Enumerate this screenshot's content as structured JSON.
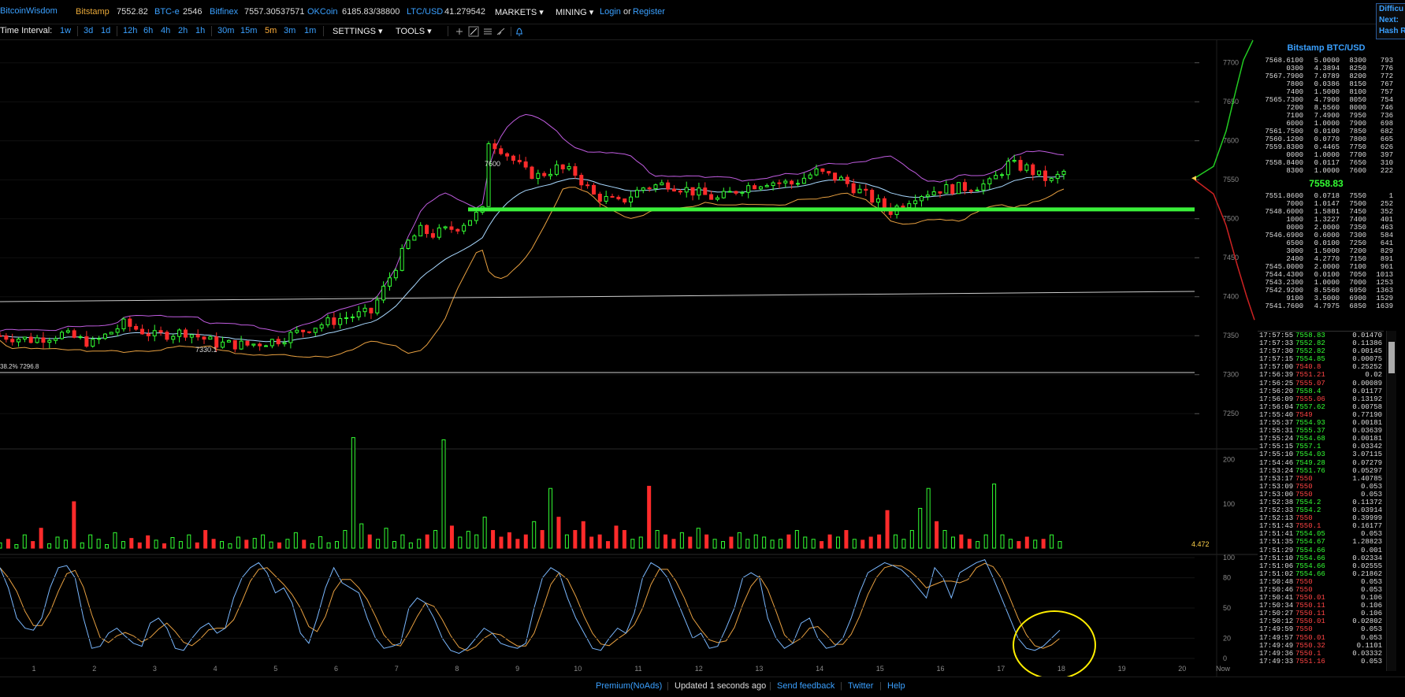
{
  "header": {
    "brand": "BitcoinWisdom",
    "tickers": [
      {
        "name": "Bitstamp",
        "value": "7552.82"
      },
      {
        "name": "BTC-e",
        "value": "2546"
      },
      {
        "name": "Bitfinex",
        "value": "7557.30537571"
      },
      {
        "name": "OKCoin",
        "value": "6185.83/38800"
      },
      {
        "name": "LTC/USD",
        "value": "41.279542"
      }
    ],
    "menus": {
      "markets": "MARKETS ▾",
      "mining": "MINING ▾"
    },
    "login": "Login",
    "or": "or",
    "register": "Register",
    "difficulty": {
      "line1": "Difficu",
      "line2": "Next:",
      "line3": "Hash R"
    }
  },
  "toolbar": {
    "time_interval_label": "Time Interval:",
    "intervals": [
      "1w",
      "3d",
      "1d",
      "12h",
      "6h",
      "4h",
      "2h",
      "1h",
      "30m",
      "15m",
      "5m",
      "3m",
      "1m"
    ],
    "active_interval": "5m",
    "settings": "SETTINGS ▾",
    "tools": "TOOLS ▾",
    "tool_icons": [
      "plus-icon",
      "line-icon",
      "hlines-icon",
      "brush-icon",
      "bell-icon"
    ]
  },
  "colors": {
    "up": "#33ff33",
    "down": "#ff2b2b",
    "accent": "#3aa0ff",
    "fib_line": "#3af03a",
    "band": "#c05ce0",
    "ema": "#a8d8ff",
    "lower_band": "#e8a040",
    "circle": "#ffee00"
  },
  "chart_data": {
    "type": "candlestick",
    "title": "",
    "price_axis": [
      "7700",
      "7650",
      "7600",
      "7550",
      "7500",
      "7450",
      "7400",
      "7350",
      "7300",
      "7250"
    ],
    "ylim": [
      7225,
      7730
    ],
    "x_ticks": [
      "1",
      "2",
      "3",
      "4",
      "5",
      "6",
      "7",
      "8",
      "9",
      "10",
      "11",
      "12",
      "13",
      "14",
      "15",
      "16",
      "17",
      "18",
      "19",
      "20",
      "Now"
    ],
    "annotations": {
      "high": "7600",
      "low": "7330.1",
      "fib": "38.2% 7296.8"
    },
    "horizontal_level": 7512,
    "price_path": [
      [
        0,
        7350
      ],
      [
        5,
        7345
      ],
      [
        10,
        7352
      ],
      [
        15,
        7340
      ],
      [
        20,
        7365
      ],
      [
        25,
        7350
      ],
      [
        30,
        7355
      ],
      [
        35,
        7340
      ],
      [
        40,
        7338
      ],
      [
        45,
        7345
      ],
      [
        50,
        7360
      ],
      [
        55,
        7372
      ],
      [
        60,
        7380
      ],
      [
        62,
        7410
      ],
      [
        64,
        7440
      ],
      [
        66,
        7470
      ],
      [
        68,
        7485
      ],
      [
        70,
        7480
      ],
      [
        72,
        7485
      ],
      [
        74,
        7490
      ],
      [
        76,
        7500
      ],
      [
        78,
        7510
      ],
      [
        79,
        7600
      ],
      [
        81,
        7590
      ],
      [
        83,
        7575
      ],
      [
        85,
        7560
      ],
      [
        87,
        7555
      ],
      [
        90,
        7565
      ],
      [
        93,
        7558
      ],
      [
        96,
        7530
      ],
      [
        100,
        7520
      ],
      [
        104,
        7540
      ],
      [
        108,
        7545
      ],
      [
        112,
        7535
      ],
      [
        116,
        7525
      ],
      [
        120,
        7540
      ],
      [
        124,
        7548
      ],
      [
        128,
        7545
      ],
      [
        132,
        7560
      ],
      [
        136,
        7550
      ],
      [
        140,
        7530
      ],
      [
        144,
        7510
      ],
      [
        148,
        7530
      ],
      [
        152,
        7538
      ],
      [
        156,
        7540
      ],
      [
        160,
        7545
      ],
      [
        163,
        7570
      ],
      [
        166,
        7565
      ],
      [
        168,
        7555
      ],
      [
        170,
        7548
      ],
      [
        172,
        7560
      ]
    ],
    "volume_axis": [
      "200",
      "100"
    ],
    "volume_ylim": [
      0,
      260
    ],
    "volume_last": "4.472",
    "volumes": [
      12,
      20,
      8,
      30,
      15,
      45,
      10,
      25,
      18,
      105,
      12,
      30,
      20,
      8,
      35,
      15,
      22,
      12,
      28,
      18,
      10,
      24,
      15,
      30,
      12,
      40,
      20,
      15,
      10,
      25,
      18,
      22,
      30,
      14,
      12,
      20,
      35,
      18,
      10,
      26,
      12,
      15,
      40,
      250,
      55,
      30,
      20,
      45,
      15,
      30,
      12,
      20,
      30,
      40,
      245,
      50,
      25,
      38,
      30,
      70,
      40,
      25,
      35,
      20,
      30,
      60,
      40,
      135,
      70,
      30,
      40,
      60,
      25,
      30,
      15,
      50,
      40,
      20,
      25,
      140,
      40,
      30,
      20,
      35,
      25,
      45,
      30,
      20,
      15,
      25,
      35,
      20,
      30,
      25,
      18,
      20,
      30,
      40,
      25,
      20,
      15,
      30,
      25,
      40,
      20,
      18,
      25,
      30,
      85,
      30,
      20,
      40,
      90,
      135,
      60,
      40,
      25,
      30,
      20,
      15,
      30,
      145,
      30,
      20,
      15,
      25,
      18,
      20,
      30,
      15
    ],
    "oscillator_axis": [
      "100",
      "80",
      "50",
      "20",
      "0"
    ],
    "oscillator_ylim": [
      0,
      100
    ],
    "oscillator_k": [
      90,
      70,
      40,
      30,
      28,
      40,
      70,
      90,
      92,
      80,
      40,
      10,
      12,
      25,
      30,
      22,
      15,
      12,
      35,
      40,
      30,
      10,
      8,
      20,
      30,
      35,
      25,
      30,
      60,
      80,
      90,
      95,
      85,
      65,
      70,
      55,
      25,
      15,
      40,
      70,
      90,
      75,
      70,
      65,
      40,
      20,
      10,
      12,
      15,
      50,
      60,
      55,
      40,
      20,
      8,
      5,
      10,
      20,
      30,
      25,
      15,
      12,
      10,
      15,
      50,
      80,
      90,
      85,
      60,
      40,
      25,
      10,
      8,
      20,
      30,
      25,
      45,
      80,
      95,
      90,
      80,
      60,
      40,
      20,
      25,
      10,
      12,
      30,
      50,
      80,
      85,
      80,
      40,
      20,
      10,
      15,
      35,
      40,
      20,
      10,
      12,
      20,
      40,
      65,
      85,
      90,
      95,
      92,
      88,
      80,
      70,
      60,
      90,
      80,
      60,
      85,
      90,
      95,
      98,
      80,
      60,
      40,
      20,
      10,
      8,
      12,
      20,
      28
    ]
  },
  "orderbook": {
    "title": "Bitstamp BTC/USD",
    "asks": [
      [
        "7568.6100",
        "5.0000",
        "8300",
        "793"
      ],
      [
        "0300",
        "4.3894",
        "8250",
        "776"
      ],
      [
        "7567.7900",
        "7.0789",
        "8200",
        "772"
      ],
      [
        "7800",
        "0.0386",
        "8150",
        "767"
      ],
      [
        "7400",
        "1.5000",
        "8100",
        "757"
      ],
      [
        "7565.7300",
        "4.7900",
        "8050",
        "754"
      ],
      [
        "7200",
        "8.5560",
        "8000",
        "746"
      ],
      [
        "7100",
        "7.4900",
        "7950",
        "736"
      ],
      [
        "6000",
        "1.0000",
        "7900",
        "698"
      ],
      [
        "7561.7500",
        "0.0100",
        "7850",
        "682"
      ],
      [
        "7560.1200",
        "0.0770",
        "7800",
        "665"
      ],
      [
        "7559.8300",
        "0.4465",
        "7750",
        "626"
      ],
      [
        "0000",
        "1.0000",
        "7700",
        "397"
      ],
      [
        "7558.8400",
        "0.0117",
        "7650",
        "310"
      ],
      [
        "8300",
        "1.0000",
        "7600",
        "222"
      ]
    ],
    "last": "7558.83",
    "bids": [
      [
        "7551.8600",
        "0.0718",
        "7550",
        "1"
      ],
      [
        "7000",
        "1.0147",
        "7500",
        "252"
      ],
      [
        "7548.6000",
        "1.5881",
        "7450",
        "352"
      ],
      [
        "1000",
        "1.3227",
        "7400",
        "401"
      ],
      [
        "0000",
        "2.0000",
        "7350",
        "463"
      ],
      [
        "7546.6900",
        "0.6000",
        "7300",
        "584"
      ],
      [
        "6500",
        "0.0100",
        "7250",
        "641"
      ],
      [
        "3000",
        "1.5000",
        "7200",
        "829"
      ],
      [
        "2400",
        "4.2770",
        "7150",
        "891"
      ],
      [
        "7545.0000",
        "2.0000",
        "7100",
        "961"
      ],
      [
        "7544.4300",
        "0.0100",
        "7050",
        "1013"
      ],
      [
        "7543.2300",
        "1.0000",
        "7000",
        "1253"
      ],
      [
        "7542.9200",
        "8.5560",
        "6950",
        "1363"
      ],
      [
        "9100",
        "3.5000",
        "6900",
        "1529"
      ],
      [
        "7541.7600",
        "4.7975",
        "6850",
        "1639"
      ]
    ]
  },
  "trades": [
    [
      "17:57:55",
      "7558.83",
      "0.01470",
      "up"
    ],
    [
      "17:57:33",
      "7552.82",
      "0.11386",
      "up"
    ],
    [
      "17:57:30",
      "7552.82",
      "0.00145",
      "up"
    ],
    [
      "17:57:15",
      "7554.85",
      "0.00075",
      "up"
    ],
    [
      "17:57:00",
      "7540.8",
      "0.25252",
      "dn"
    ],
    [
      "17:56:39",
      "7551.21",
      "0.02",
      "dn"
    ],
    [
      "17:56:25",
      "7555.07",
      "0.00089",
      "dn"
    ],
    [
      "17:56:20",
      "7558.4",
      "0.01177",
      "up"
    ],
    [
      "17:56:09",
      "7555.06",
      "0.13192",
      "dn"
    ],
    [
      "17:56:04",
      "7557.62",
      "0.00758",
      "up"
    ],
    [
      "17:55:40",
      "7549",
      "0.77190",
      "dn"
    ],
    [
      "17:55:37",
      "7554.93",
      "0.00181",
      "up"
    ],
    [
      "17:55:31",
      "7555.37",
      "0.03639",
      "up"
    ],
    [
      "17:55:24",
      "7554.68",
      "0.00181",
      "up"
    ],
    [
      "17:55:15",
      "7557.1",
      "0.03342",
      "up"
    ],
    [
      "17:55:10",
      "7554.03",
      "3.07115",
      "up"
    ],
    [
      "17:54:46",
      "7549.28",
      "0.07279",
      "up"
    ],
    [
      "17:53:24",
      "7551.76",
      "0.05297",
      "up"
    ],
    [
      "17:53:17",
      "7550",
      "1.40785",
      "dn"
    ],
    [
      "17:53:09",
      "7550",
      "0.053",
      "dn"
    ],
    [
      "17:53:00",
      "7550",
      "0.053",
      "dn"
    ],
    [
      "17:52:38",
      "7554.2",
      "0.11372",
      "up"
    ],
    [
      "17:52:33",
      "7554.2",
      "0.03914",
      "up"
    ],
    [
      "17:52:13",
      "7550",
      "0.39999",
      "dn"
    ],
    [
      "17:51:43",
      "7550.1",
      "0.16177",
      "dn"
    ],
    [
      "17:51:41",
      "7554.05",
      "0.053",
      "up"
    ],
    [
      "17:51:35",
      "7554.67",
      "1.28823",
      "up"
    ],
    [
      "17:51:29",
      "7554.66",
      "0.001",
      "up"
    ],
    [
      "17:51:10",
      "7554.66",
      "0.02334",
      "up"
    ],
    [
      "17:51:06",
      "7554.66",
      "0.02555",
      "up"
    ],
    [
      "17:51:02",
      "7554.66",
      "0.21862",
      "up"
    ],
    [
      "17:50:48",
      "7550",
      "0.053",
      "dn"
    ],
    [
      "17:50:46",
      "7550",
      "0.053",
      "dn"
    ],
    [
      "17:50:41",
      "7550.01",
      "0.106",
      "dn"
    ],
    [
      "17:50:34",
      "7550.11",
      "0.106",
      "dn"
    ],
    [
      "17:50:27",
      "7550.11",
      "0.106",
      "dn"
    ],
    [
      "17:50:12",
      "7550.01",
      "0.02802",
      "dn"
    ],
    [
      "17:49:59",
      "7550",
      "0.053",
      "dn"
    ],
    [
      "17:49:57",
      "7550.01",
      "0.053",
      "dn"
    ],
    [
      "17:49:49",
      "7550.32",
      "0.1101",
      "dn"
    ],
    [
      "17:49:36",
      "7550.1",
      "0.03332",
      "dn"
    ],
    [
      "17:49:33",
      "7551.16",
      "0.053",
      "dn"
    ]
  ],
  "footer": {
    "premium": "Premium(NoAds)",
    "updated": "Updated 1 seconds ago",
    "feedback": "Send feedback",
    "twitter": "Twitter",
    "help": "Help"
  }
}
